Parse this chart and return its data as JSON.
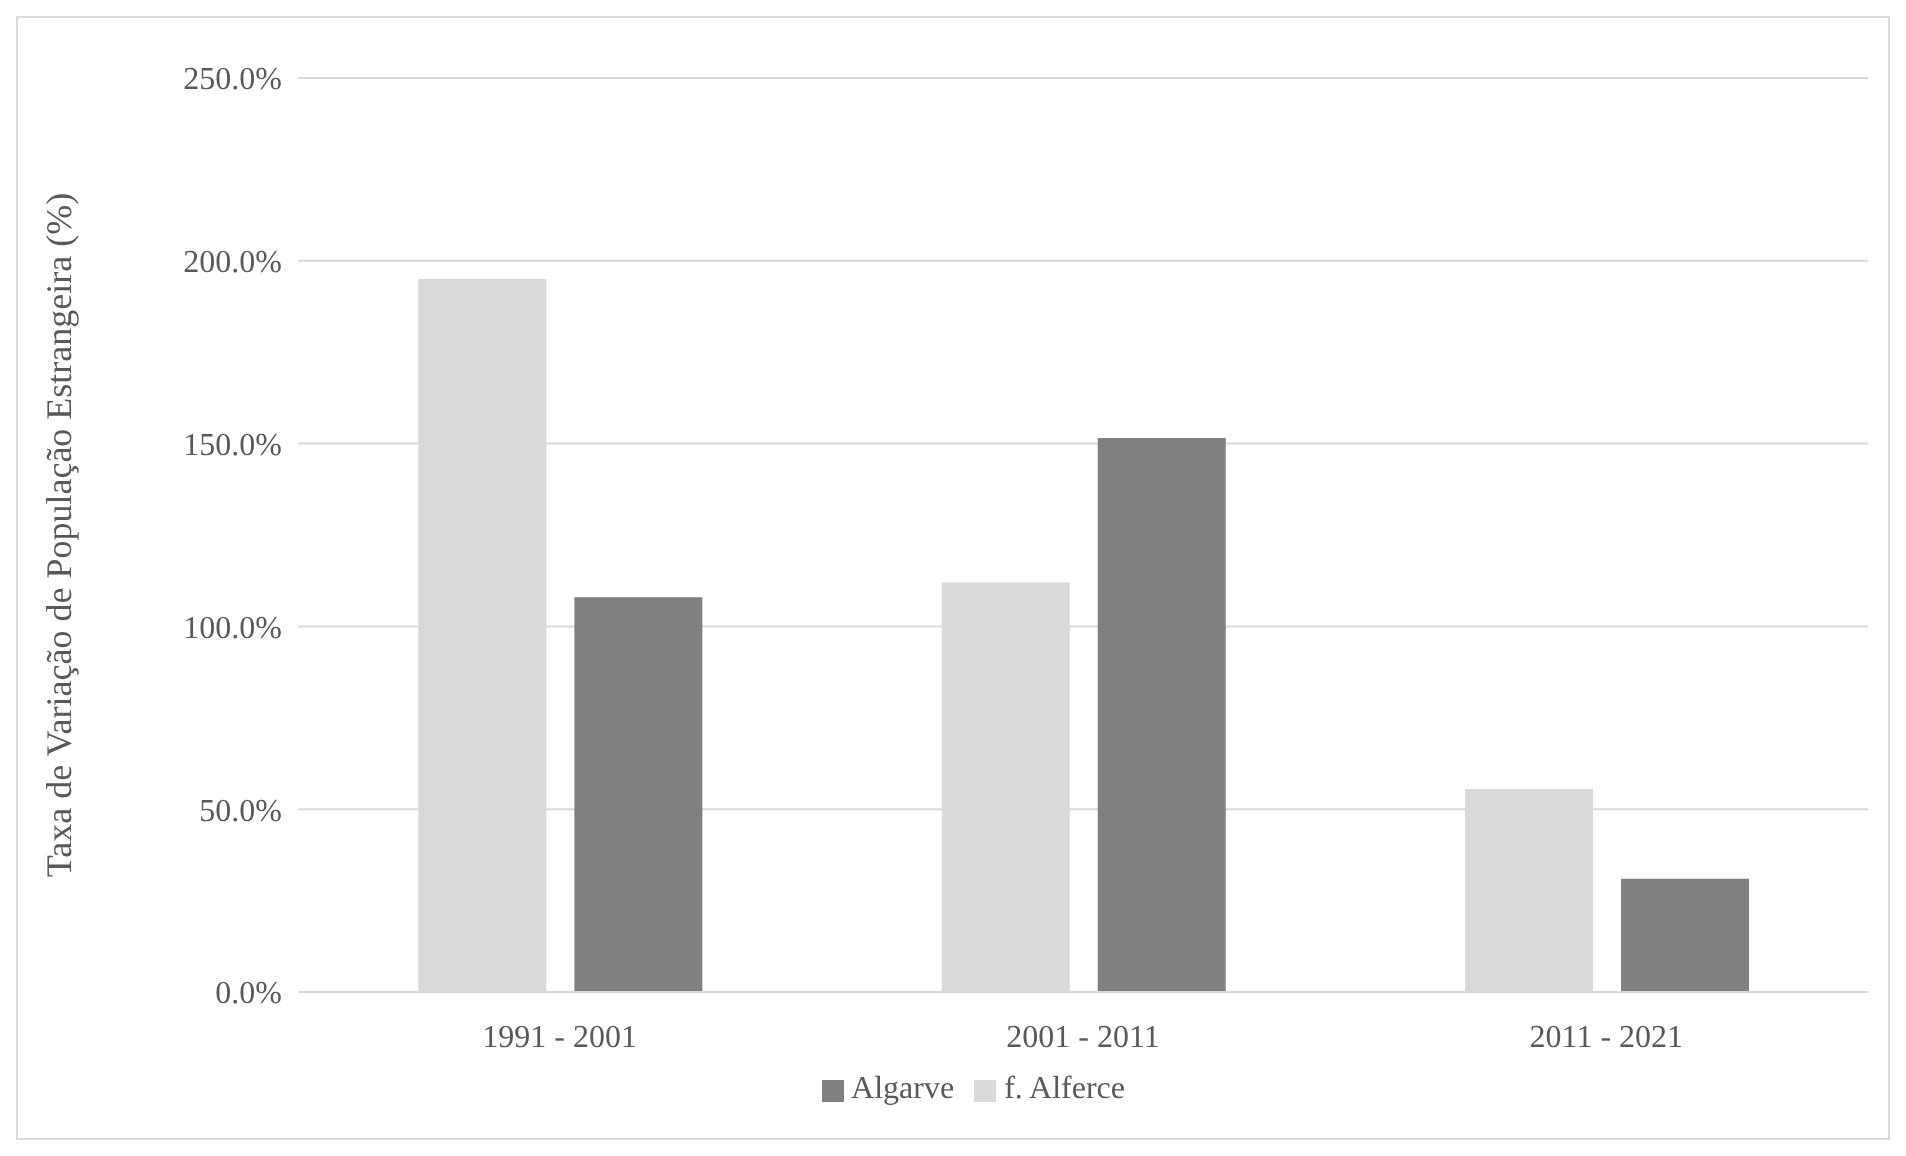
{
  "chart_data": {
    "type": "bar",
    "ylabel": "Taxa de Variação de População Estrangeira (%)",
    "categories": [
      "1991 - 2001",
      "2001 - 2011",
      "2011 - 2021"
    ],
    "series": [
      {
        "name": "f. Alferce",
        "color": "#d9d9d9",
        "values": [
          195,
          112,
          55.5
        ]
      },
      {
        "name": "Algarve",
        "color": "#808080",
        "values": [
          108,
          151.5,
          31
        ]
      }
    ],
    "ylim": [
      0,
      250
    ],
    "yticks": [
      {
        "value": 0,
        "label": "0.0%"
      },
      {
        "value": 50,
        "label": "50.0%"
      },
      {
        "value": 100,
        "label": "100.0%"
      },
      {
        "value": 150,
        "label": "150.0%"
      },
      {
        "value": 200,
        "label": "200.0%"
      },
      {
        "value": 250,
        "label": "250.0%"
      }
    ],
    "grid": "y",
    "legend": "bottom"
  }
}
